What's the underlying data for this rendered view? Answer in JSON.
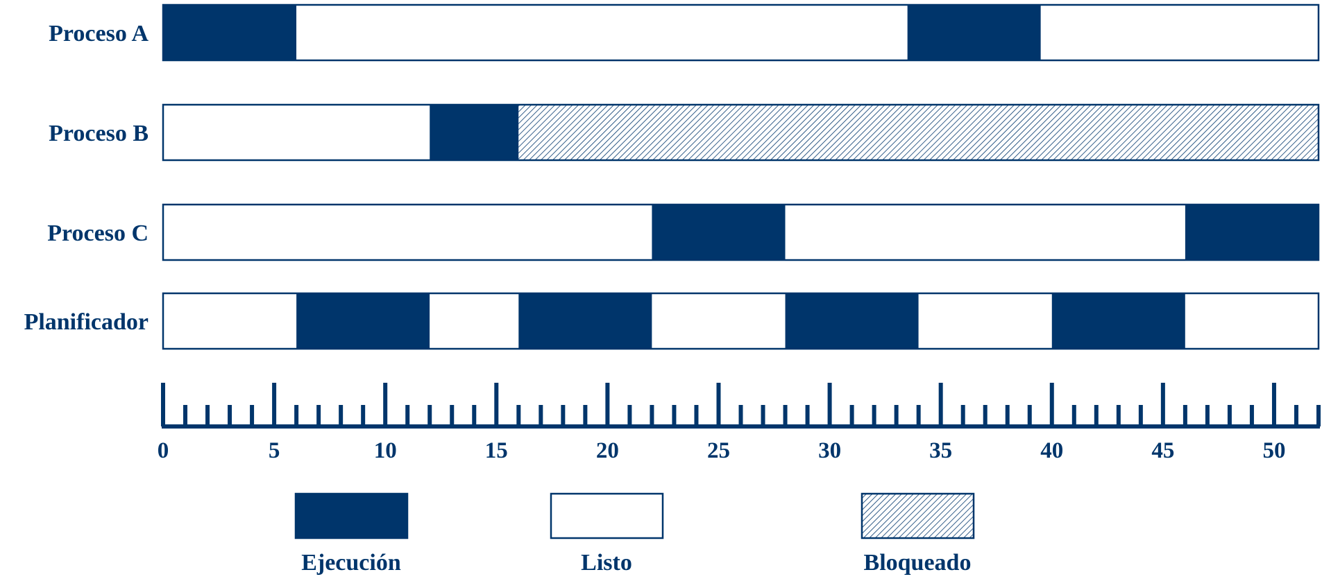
{
  "colors": {
    "accent": "#00356b",
    "ready": "#ffffff",
    "background": "#ffffff"
  },
  "chart_data": {
    "type": "timeline",
    "time_unit_max": 52,
    "rows": [
      {
        "label": "Proceso A",
        "segments": [
          {
            "start": 0,
            "end": 6,
            "state": "Ejecución"
          },
          {
            "start": 6,
            "end": 33.5,
            "state": "Listo"
          },
          {
            "start": 33.5,
            "end": 39.5,
            "state": "Ejecución"
          },
          {
            "start": 39.5,
            "end": 52,
            "state": "Listo"
          }
        ]
      },
      {
        "label": "Proceso B",
        "segments": [
          {
            "start": 0,
            "end": 12,
            "state": "Listo"
          },
          {
            "start": 12,
            "end": 16,
            "state": "Ejecución"
          },
          {
            "start": 16,
            "end": 52,
            "state": "Bloqueado"
          }
        ]
      },
      {
        "label": "Proceso C",
        "segments": [
          {
            "start": 0,
            "end": 22,
            "state": "Listo"
          },
          {
            "start": 22,
            "end": 28,
            "state": "Ejecución"
          },
          {
            "start": 28,
            "end": 46,
            "state": "Listo"
          },
          {
            "start": 46,
            "end": 52,
            "state": "Ejecución"
          }
        ]
      },
      {
        "label": "Planificador",
        "segments": [
          {
            "start": 0,
            "end": 6,
            "state": "Listo"
          },
          {
            "start": 6,
            "end": 12,
            "state": "Ejecución"
          },
          {
            "start": 12,
            "end": 16,
            "state": "Listo"
          },
          {
            "start": 16,
            "end": 22,
            "state": "Ejecución"
          },
          {
            "start": 22,
            "end": 28,
            "state": "Listo"
          },
          {
            "start": 28,
            "end": 34,
            "state": "Ejecución"
          },
          {
            "start": 34,
            "end": 40,
            "state": "Listo"
          },
          {
            "start": 40,
            "end": 46,
            "state": "Ejecución"
          },
          {
            "start": 46,
            "end": 52,
            "state": "Listo"
          }
        ]
      }
    ],
    "axis": {
      "min": 0,
      "max": 52,
      "major_step": 5,
      "minor_step": 1,
      "tick_labels": [
        "0",
        "5",
        "10",
        "15",
        "20",
        "25",
        "30",
        "35",
        "40",
        "45",
        "50"
      ]
    },
    "legend": [
      {
        "label": "Ejecución",
        "state": "Ejecución"
      },
      {
        "label": "Listo",
        "state": "Listo"
      },
      {
        "label": "Bloqueado",
        "state": "Bloqueado"
      }
    ]
  }
}
